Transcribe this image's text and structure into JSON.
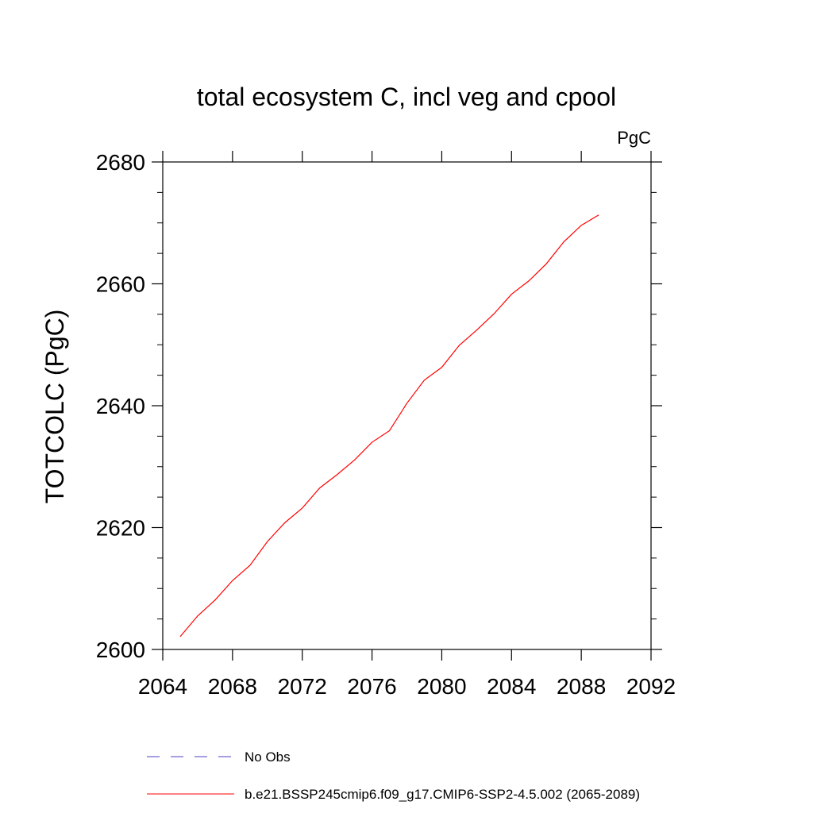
{
  "chart_data": {
    "type": "line",
    "title": "total ecosystem C, incl veg and cpool",
    "units_label": "PgC",
    "ylabel": "TOTCOLC  (PgC)",
    "xlabel": "",
    "xlim": [
      2064,
      2092
    ],
    "ylim": [
      2600,
      2680
    ],
    "x_ticks": [
      "2064",
      "2068",
      "2072",
      "2076",
      "2080",
      "2084",
      "2088",
      "2092"
    ],
    "y_ticks": [
      "2600",
      "2620",
      "2640",
      "2660",
      "2680"
    ],
    "grid": false,
    "legend_position": "bottom",
    "series": [
      {
        "name": "No Obs",
        "style": "dashed",
        "color": "#4a3fbf",
        "x": [],
        "y": []
      },
      {
        "name": "b.e21.BSSP245cmip6.f09_g17.CMIP6-SSP2-4.5.002 (2065-2089)",
        "style": "solid",
        "color": "#ff0000",
        "x": [
          2065,
          2066,
          2067,
          2068,
          2069,
          2070,
          2071,
          2072,
          2073,
          2074,
          2075,
          2076,
          2077,
          2078,
          2079,
          2080,
          2081,
          2082,
          2083,
          2084,
          2085,
          2086,
          2087,
          2088,
          2089
        ],
        "y": [
          2602.1,
          2605.5,
          2608.1,
          2611.3,
          2613.8,
          2617.7,
          2620.8,
          2623.2,
          2626.5,
          2628.7,
          2631.1,
          2634.0,
          2635.9,
          2640.4,
          2644.2,
          2646.3,
          2649.9,
          2652.4,
          2655.1,
          2658.3,
          2660.5,
          2663.3,
          2666.9,
          2669.6,
          2671.3
        ]
      }
    ]
  }
}
